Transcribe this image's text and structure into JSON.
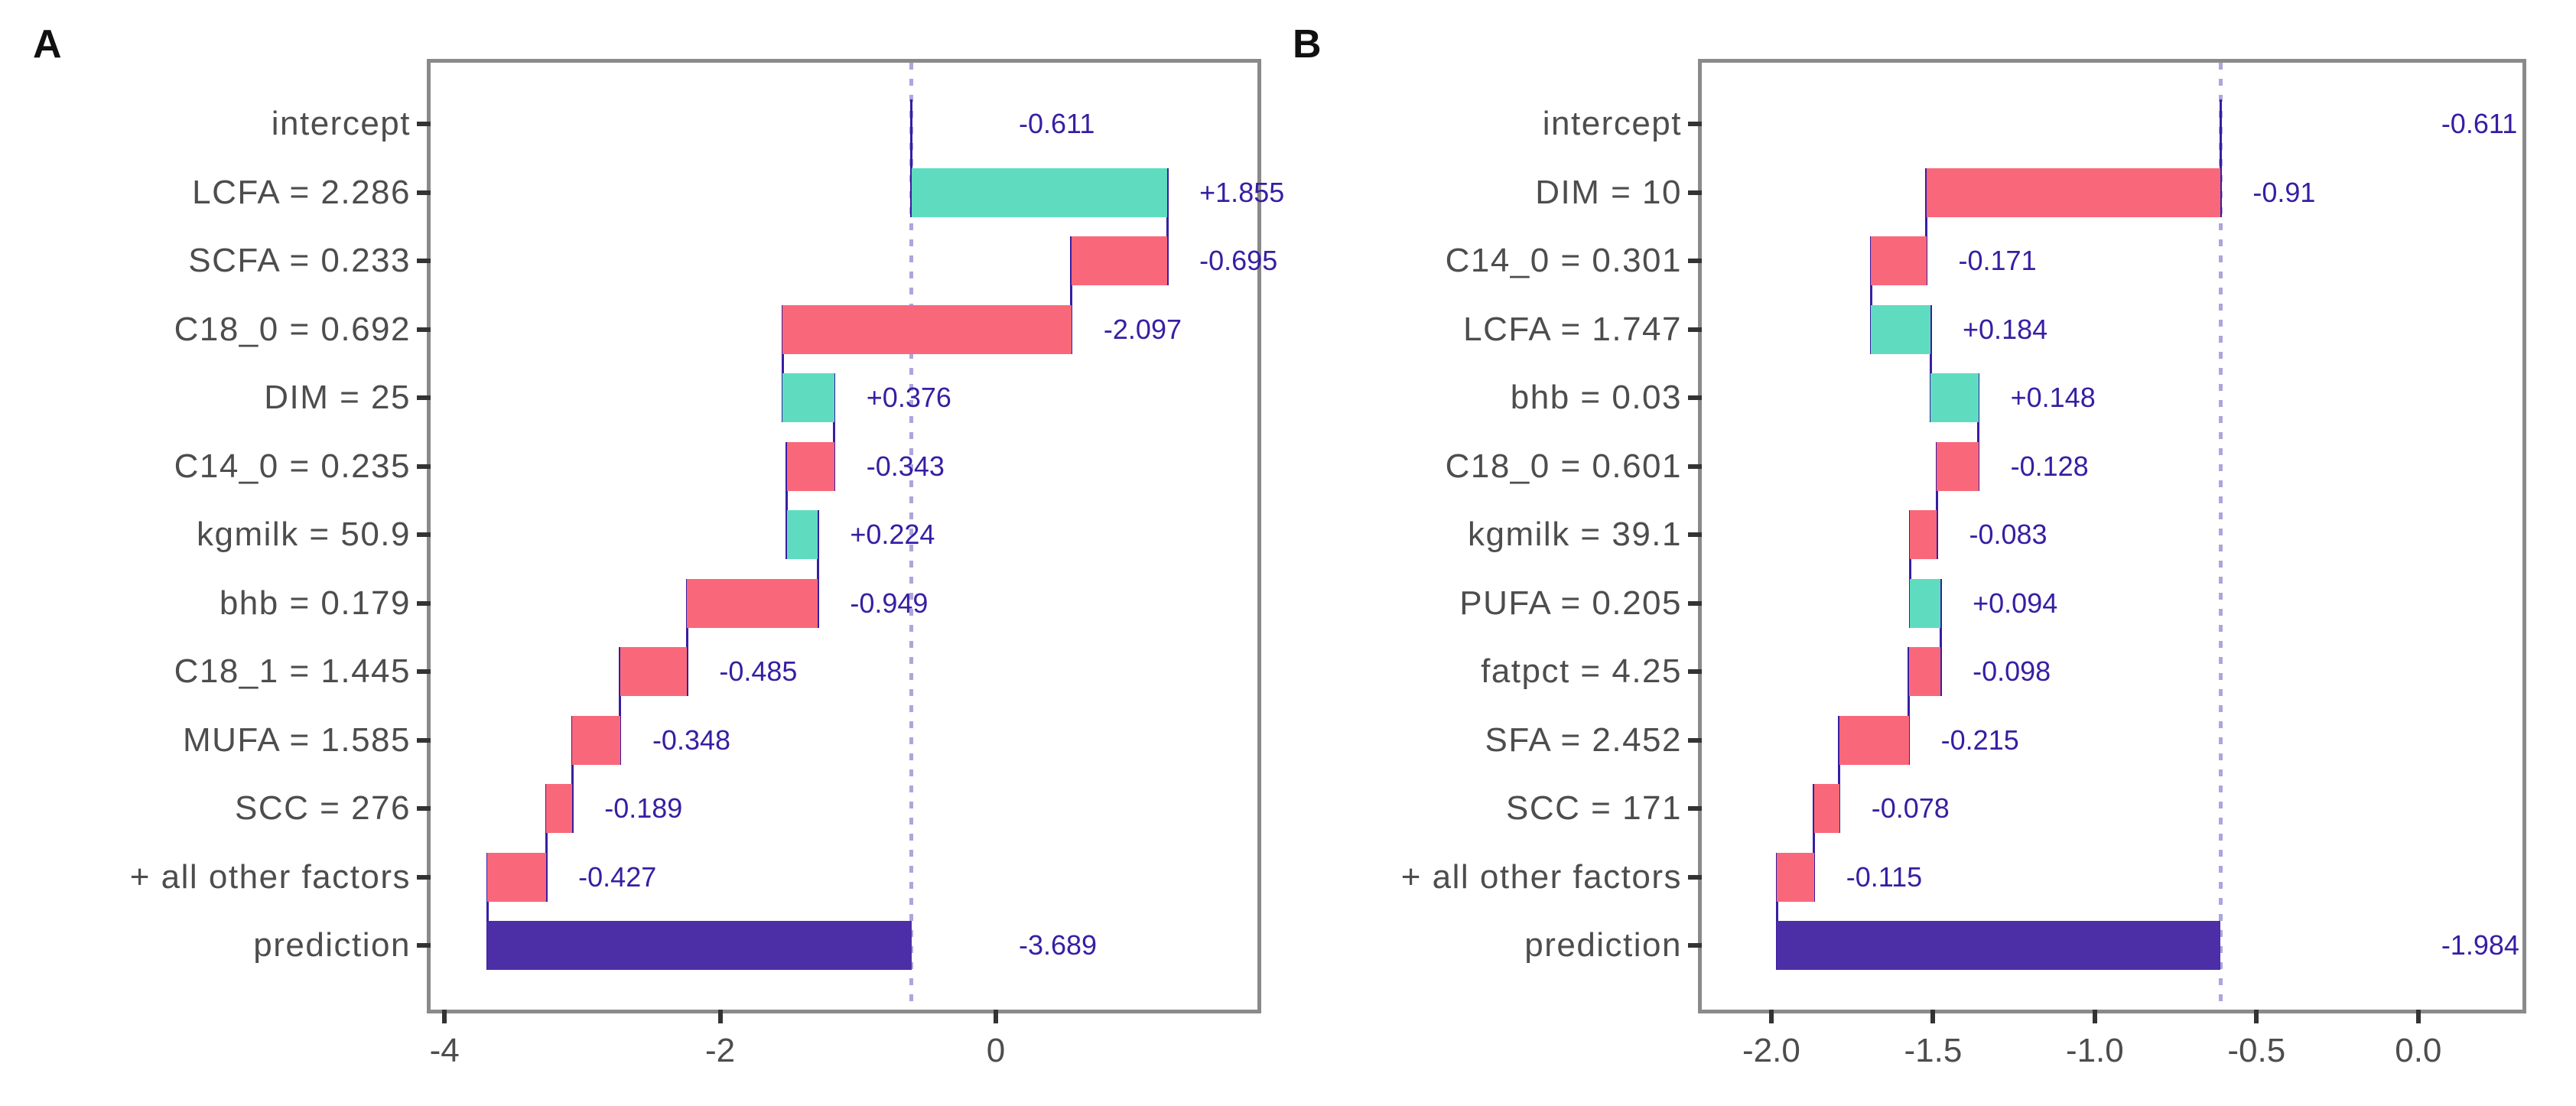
{
  "page": {
    "background": "#ffffff"
  },
  "panels": [
    {
      "tag": "A"
    },
    {
      "tag": "B"
    }
  ],
  "colors": {
    "positive_bar": "#5fdcc0",
    "negative_bar": "#f9687a",
    "prediction_bar": "#4c2ea6",
    "connector": "#371ea3",
    "value_label_text": "#371ea3",
    "baseline_dotted": "#aba6db",
    "panel_border": "#8a8a8a",
    "tick_mark": "#333333",
    "axis_text": "#4d4d4d",
    "tag_text": "#111111"
  },
  "chart_data": [
    {
      "type": "bar",
      "subtype": "breakdown-waterfall",
      "panel_tag": "A",
      "orientation": "horizontal",
      "grid": false,
      "baseline_x": -0.611,
      "xlim": [
        -4.101,
        1.898
      ],
      "x_tick_values": [
        -4,
        -2,
        0
      ],
      "x_tick_labels": [
        "-4",
        "-2",
        "0"
      ],
      "rows": [
        {
          "label": "intercept",
          "kind": "intercept",
          "value_label": "-0.611",
          "start": -0.611,
          "end": -0.611
        },
        {
          "label": "LCFA = 2.286",
          "kind": "positive",
          "value_label": "+1.855",
          "start": -0.611,
          "end": 1.244
        },
        {
          "label": "SCFA = 0.233",
          "kind": "negative",
          "value_label": "-0.695",
          "start": 0.549,
          "end": 1.244
        },
        {
          "label": "C18_0 = 0.692",
          "kind": "negative",
          "value_label": "-2.097",
          "start": -1.548,
          "end": 0.549
        },
        {
          "label": "DIM = 25",
          "kind": "positive",
          "value_label": "+0.376",
          "start": -1.548,
          "end": -1.172
        },
        {
          "label": "C14_0 = 0.235",
          "kind": "negative",
          "value_label": "-0.343",
          "start": -1.515,
          "end": -1.172
        },
        {
          "label": "kgmilk = 50.9",
          "kind": "positive",
          "value_label": "+0.224",
          "start": -1.515,
          "end": -1.291
        },
        {
          "label": "bhb = 0.179",
          "kind": "negative",
          "value_label": "-0.949",
          "start": -2.24,
          "end": -1.291
        },
        {
          "label": "C18_1 = 1.445",
          "kind": "negative",
          "value_label": "-0.485",
          "start": -2.725,
          "end": -2.24
        },
        {
          "label": "MUFA = 1.585",
          "kind": "negative",
          "value_label": "-0.348",
          "start": -3.073,
          "end": -2.725
        },
        {
          "label": "SCC = 276",
          "kind": "negative",
          "value_label": "-0.189",
          "start": -3.262,
          "end": -3.073
        },
        {
          "label": "+ all other factors",
          "kind": "negative",
          "value_label": "-0.427",
          "start": -3.689,
          "end": -3.262
        },
        {
          "label": "prediction",
          "kind": "prediction",
          "value_label": "-3.689",
          "start": -3.689,
          "end": -0.611
        }
      ]
    },
    {
      "type": "bar",
      "subtype": "breakdown-waterfall",
      "panel_tag": "B",
      "orientation": "horizontal",
      "grid": false,
      "baseline_x": -0.611,
      "xlim": [
        -2.215,
        0.322
      ],
      "x_tick_values": [
        -2.0,
        -1.5,
        -1.0,
        -0.5,
        0.0
      ],
      "x_tick_labels": [
        "-2.0",
        "-1.5",
        "-1.0",
        "-0.5",
        "0.0"
      ],
      "rows": [
        {
          "label": "intercept",
          "kind": "intercept",
          "value_label": "-0.611",
          "start": -0.611,
          "end": -0.611
        },
        {
          "label": "DIM = 10",
          "kind": "negative",
          "value_label": "-0.91",
          "start": -1.521,
          "end": -0.611
        },
        {
          "label": "C14_0 = 0.301",
          "kind": "negative",
          "value_label": "-0.171",
          "start": -1.692,
          "end": -1.521
        },
        {
          "label": "LCFA = 1.747",
          "kind": "positive",
          "value_label": "+0.184",
          "start": -1.692,
          "end": -1.508
        },
        {
          "label": "bhb = 0.03",
          "kind": "positive",
          "value_label": "+0.148",
          "start": -1.508,
          "end": -1.36
        },
        {
          "label": "C18_0 = 0.601",
          "kind": "negative",
          "value_label": "-0.128",
          "start": -1.488,
          "end": -1.36
        },
        {
          "label": "kgmilk = 39.1",
          "kind": "negative",
          "value_label": "-0.083",
          "start": -1.571,
          "end": -1.488
        },
        {
          "label": "PUFA = 0.205",
          "kind": "positive",
          "value_label": "+0.094",
          "start": -1.571,
          "end": -1.477
        },
        {
          "label": "fatpct = 4.25",
          "kind": "negative",
          "value_label": "-0.098",
          "start": -1.575,
          "end": -1.477
        },
        {
          "label": "SFA = 2.452",
          "kind": "negative",
          "value_label": "-0.215",
          "start": -1.79,
          "end": -1.575
        },
        {
          "label": "SCC = 171",
          "kind": "negative",
          "value_label": "-0.078",
          "start": -1.868,
          "end": -1.79
        },
        {
          "label": "+ all other factors",
          "kind": "negative",
          "value_label": "-0.115",
          "start": -1.983,
          "end": -1.868
        },
        {
          "label": "prediction",
          "kind": "prediction",
          "value_label": "-1.984",
          "start": -1.984,
          "end": -0.611
        }
      ]
    }
  ]
}
